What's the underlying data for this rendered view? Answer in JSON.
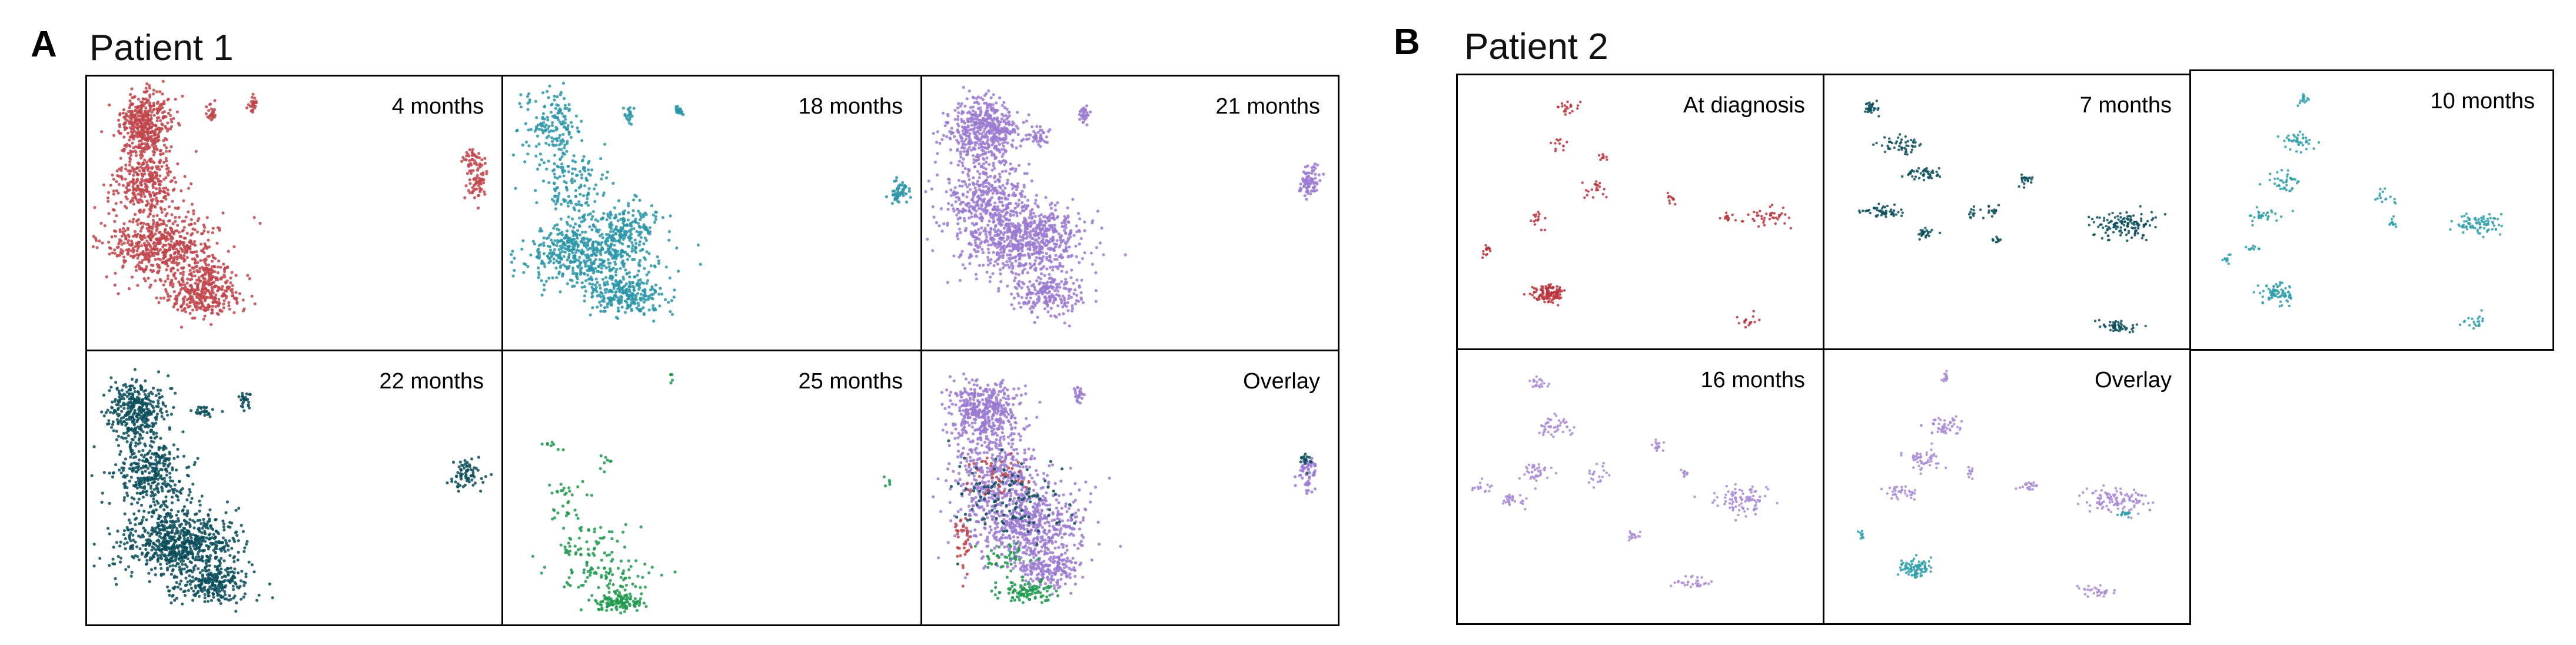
{
  "figure": {
    "panel_a": {
      "letter": "A",
      "title": "Patient 1"
    },
    "panel_b": {
      "letter": "B",
      "title": "Patient 2"
    }
  },
  "colors": {
    "red": "#c0454b",
    "teal": "#2a95a8",
    "purple": "#9b7ad1",
    "darkteal": "#0b4d5a",
    "green": "#1f9a4e",
    "purple_b": "#a88ad6",
    "teal_b": "#2f9faa",
    "red_b": "#b8323a"
  },
  "chart_data": [
    {
      "type": "scatter",
      "group": "A",
      "title": "4 months",
      "color_key": "red",
      "series": [
        {
          "name": "4 months",
          "clusters": [
            [
              0.14,
              0.18,
              0.05,
              0.1,
              450
            ],
            [
              0.14,
              0.4,
              0.07,
              0.1,
              300
            ],
            [
              0.18,
              0.62,
              0.11,
              0.1,
              550
            ],
            [
              0.28,
              0.8,
              0.08,
              0.06,
              300
            ],
            [
              0.3,
              0.72,
              0.04,
              0.06,
              80
            ],
            [
              0.3,
              0.14,
              0.01,
              0.03,
              25
            ],
            [
              0.4,
              0.1,
              0.01,
              0.03,
              25
            ],
            [
              0.93,
              0.3,
              0.02,
              0.03,
              25
            ],
            [
              0.94,
              0.38,
              0.02,
              0.06,
              70
            ]
          ]
        }
      ]
    },
    {
      "type": "scatter",
      "group": "A",
      "title": "18 months",
      "color_key": "teal",
      "series": [
        {
          "name": "18 months",
          "clusters": [
            [
              0.12,
              0.18,
              0.06,
              0.1,
              160
            ],
            [
              0.16,
              0.4,
              0.07,
              0.12,
              150
            ],
            [
              0.2,
              0.65,
              0.12,
              0.1,
              550
            ],
            [
              0.3,
              0.8,
              0.08,
              0.06,
              250
            ],
            [
              0.3,
              0.55,
              0.06,
              0.08,
              150
            ],
            [
              0.3,
              0.14,
              0.01,
              0.03,
              20
            ],
            [
              0.42,
              0.12,
              0.01,
              0.02,
              20
            ],
            [
              0.95,
              0.42,
              0.02,
              0.04,
              50
            ]
          ]
        }
      ]
    },
    {
      "type": "scatter",
      "group": "A",
      "title": "21 months",
      "color_key": "purple",
      "series": [
        {
          "name": "21 months",
          "clusters": [
            [
              0.15,
              0.2,
              0.07,
              0.1,
              500
            ],
            [
              0.15,
              0.45,
              0.09,
              0.12,
              400
            ],
            [
              0.25,
              0.6,
              0.12,
              0.12,
              700
            ],
            [
              0.3,
              0.8,
              0.07,
              0.06,
              200
            ],
            [
              0.28,
              0.22,
              0.02,
              0.03,
              40
            ],
            [
              0.39,
              0.14,
              0.01,
              0.03,
              30
            ],
            [
              0.93,
              0.38,
              0.02,
              0.05,
              80
            ]
          ]
        }
      ]
    },
    {
      "type": "scatter",
      "group": "A",
      "title": "22 months",
      "color_key": "darkteal",
      "series": [
        {
          "name": "22 months",
          "clusters": [
            [
              0.12,
              0.22,
              0.06,
              0.1,
              350
            ],
            [
              0.15,
              0.45,
              0.08,
              0.12,
              350
            ],
            [
              0.22,
              0.7,
              0.12,
              0.1,
              700
            ],
            [
              0.3,
              0.85,
              0.08,
              0.06,
              250
            ],
            [
              0.28,
              0.22,
              0.02,
              0.02,
              25
            ],
            [
              0.38,
              0.18,
              0.01,
              0.03,
              25
            ],
            [
              0.92,
              0.45,
              0.03,
              0.05,
              70
            ]
          ]
        }
      ]
    },
    {
      "type": "scatter",
      "group": "A",
      "title": "25 months",
      "color_key": "green",
      "series": [
        {
          "name": "25 months",
          "clusters": [
            [
              0.12,
              0.35,
              0.02,
              0.02,
              8
            ],
            [
              0.15,
              0.55,
              0.05,
              0.08,
              30
            ],
            [
              0.2,
              0.7,
              0.08,
              0.08,
              60
            ],
            [
              0.25,
              0.82,
              0.08,
              0.05,
              80
            ],
            [
              0.28,
              0.92,
              0.05,
              0.03,
              120
            ],
            [
              0.23,
              0.4,
              0.02,
              0.03,
              8
            ],
            [
              0.4,
              0.1,
              0.01,
              0.02,
              5
            ],
            [
              0.92,
              0.48,
              0.01,
              0.02,
              5
            ]
          ]
        }
      ]
    },
    {
      "type": "scatter",
      "group": "A",
      "title": "Overlay",
      "color_key": "purple",
      "series": [
        {
          "name": "purple",
          "color_key": "purple",
          "clusters": [
            [
              0.15,
              0.22,
              0.07,
              0.1,
              450
            ],
            [
              0.17,
              0.45,
              0.09,
              0.12,
              350
            ],
            [
              0.25,
              0.63,
              0.12,
              0.12,
              600
            ],
            [
              0.3,
              0.8,
              0.07,
              0.06,
              200
            ],
            [
              0.38,
              0.16,
              0.01,
              0.03,
              25
            ],
            [
              0.93,
              0.45,
              0.02,
              0.05,
              60
            ]
          ]
        },
        {
          "name": "darkteal",
          "color_key": "darkteal",
          "clusters": [
            [
              0.2,
              0.55,
              0.1,
              0.12,
              120
            ],
            [
              0.92,
              0.4,
              0.01,
              0.03,
              15
            ]
          ]
        },
        {
          "name": "red",
          "color_key": "red",
          "clusters": [
            [
              0.1,
              0.7,
              0.02,
              0.08,
              40
            ],
            [
              0.18,
              0.45,
              0.06,
              0.08,
              40
            ]
          ]
        },
        {
          "name": "green",
          "color_key": "green",
          "clusters": [
            [
              0.25,
              0.88,
              0.06,
              0.04,
              100
            ],
            [
              0.2,
              0.75,
              0.05,
              0.04,
              40
            ]
          ]
        }
      ]
    },
    {
      "type": "scatter",
      "group": "B",
      "title": "At diagnosis",
      "color_key": "red_b",
      "series": [
        {
          "name": "At diagnosis",
          "clusters": [
            [
              0.25,
              0.8,
              0.04,
              0.03,
              120
            ],
            [
              0.08,
              0.64,
              0.01,
              0.02,
              15
            ],
            [
              0.3,
              0.12,
              0.03,
              0.02,
              20
            ],
            [
              0.28,
              0.25,
              0.02,
              0.02,
              12
            ],
            [
              0.4,
              0.3,
              0.01,
              0.01,
              8
            ],
            [
              0.38,
              0.42,
              0.04,
              0.03,
              20
            ],
            [
              0.22,
              0.52,
              0.02,
              0.03,
              15
            ],
            [
              0.58,
              0.45,
              0.01,
              0.02,
              10
            ],
            [
              0.74,
              0.52,
              0.02,
              0.02,
              12
            ],
            [
              0.85,
              0.52,
              0.05,
              0.03,
              40
            ],
            [
              0.8,
              0.9,
              0.03,
              0.02,
              15
            ]
          ]
        }
      ]
    },
    {
      "type": "scatter",
      "group": "B",
      "title": "7 months",
      "color_key": "darkteal",
      "series": [
        {
          "name": "7 months",
          "clusters": [
            [
              0.13,
              0.12,
              0.02,
              0.02,
              30
            ],
            [
              0.21,
              0.25,
              0.05,
              0.03,
              50
            ],
            [
              0.27,
              0.36,
              0.05,
              0.02,
              45
            ],
            [
              0.16,
              0.5,
              0.05,
              0.02,
              50
            ],
            [
              0.28,
              0.58,
              0.02,
              0.02,
              25
            ],
            [
              0.55,
              0.38,
              0.02,
              0.02,
              20
            ],
            [
              0.46,
              0.5,
              0.02,
              0.02,
              15
            ],
            [
              0.47,
              0.6,
              0.01,
              0.01,
              10
            ],
            [
              0.82,
              0.55,
              0.07,
              0.04,
              130
            ],
            [
              0.8,
              0.92,
              0.05,
              0.02,
              50
            ],
            [
              0.4,
              0.5,
              0.01,
              0.02,
              10
            ]
          ]
        }
      ]
    },
    {
      "type": "scatter",
      "group": "B",
      "title": "10 months",
      "color_key": "teal_b",
      "series": [
        {
          "name": "10 months",
          "clusters": [
            [
              0.31,
              0.1,
              0.01,
              0.02,
              15
            ],
            [
              0.3,
              0.25,
              0.04,
              0.03,
              40
            ],
            [
              0.26,
              0.4,
              0.04,
              0.03,
              40
            ],
            [
              0.2,
              0.52,
              0.04,
              0.02,
              30
            ],
            [
              0.17,
              0.64,
              0.02,
              0.01,
              10
            ],
            [
              0.1,
              0.68,
              0.01,
              0.02,
              10
            ],
            [
              0.24,
              0.8,
              0.04,
              0.03,
              80
            ],
            [
              0.54,
              0.45,
              0.02,
              0.02,
              15
            ],
            [
              0.56,
              0.55,
              0.01,
              0.02,
              10
            ],
            [
              0.8,
              0.55,
              0.06,
              0.03,
              80
            ],
            [
              0.78,
              0.9,
              0.03,
              0.02,
              20
            ]
          ]
        }
      ]
    },
    {
      "type": "scatter",
      "group": "B",
      "title": "16 months",
      "color_key": "purple_b",
      "series": [
        {
          "name": "16 months",
          "clusters": [
            [
              0.22,
              0.12,
              0.02,
              0.02,
              20
            ],
            [
              0.27,
              0.28,
              0.04,
              0.03,
              45
            ],
            [
              0.22,
              0.45,
              0.03,
              0.03,
              40
            ],
            [
              0.15,
              0.55,
              0.03,
              0.02,
              30
            ],
            [
              0.07,
              0.5,
              0.02,
              0.02,
              15
            ],
            [
              0.38,
              0.45,
              0.03,
              0.03,
              20
            ],
            [
              0.55,
              0.35,
              0.02,
              0.02,
              15
            ],
            [
              0.48,
              0.68,
              0.02,
              0.02,
              15
            ],
            [
              0.78,
              0.55,
              0.06,
              0.04,
              90
            ],
            [
              0.65,
              0.85,
              0.04,
              0.02,
              30
            ],
            [
              0.62,
              0.45,
              0.01,
              0.02,
              10
            ]
          ]
        }
      ]
    },
    {
      "type": "scatter",
      "group": "B",
      "title": "Overlay",
      "color_key": "purple_b",
      "series": [
        {
          "name": "purple",
          "color_key": "purple_b",
          "clusters": [
            [
              0.33,
              0.1,
              0.01,
              0.02,
              15
            ],
            [
              0.32,
              0.28,
              0.04,
              0.03,
              50
            ],
            [
              0.27,
              0.4,
              0.04,
              0.03,
              50
            ],
            [
              0.21,
              0.52,
              0.04,
              0.02,
              35
            ],
            [
              0.4,
              0.45,
              0.01,
              0.02,
              10
            ],
            [
              0.56,
              0.5,
              0.02,
              0.02,
              20
            ],
            [
              0.8,
              0.55,
              0.07,
              0.04,
              110
            ],
            [
              0.75,
              0.88,
              0.04,
              0.02,
              30
            ]
          ]
        },
        {
          "name": "teal",
          "color_key": "teal_b",
          "clusters": [
            [
              0.25,
              0.8,
              0.04,
              0.03,
              90
            ],
            [
              0.1,
              0.68,
              0.01,
              0.02,
              10
            ],
            [
              0.82,
              0.6,
              0.02,
              0.01,
              15
            ]
          ]
        }
      ]
    }
  ]
}
